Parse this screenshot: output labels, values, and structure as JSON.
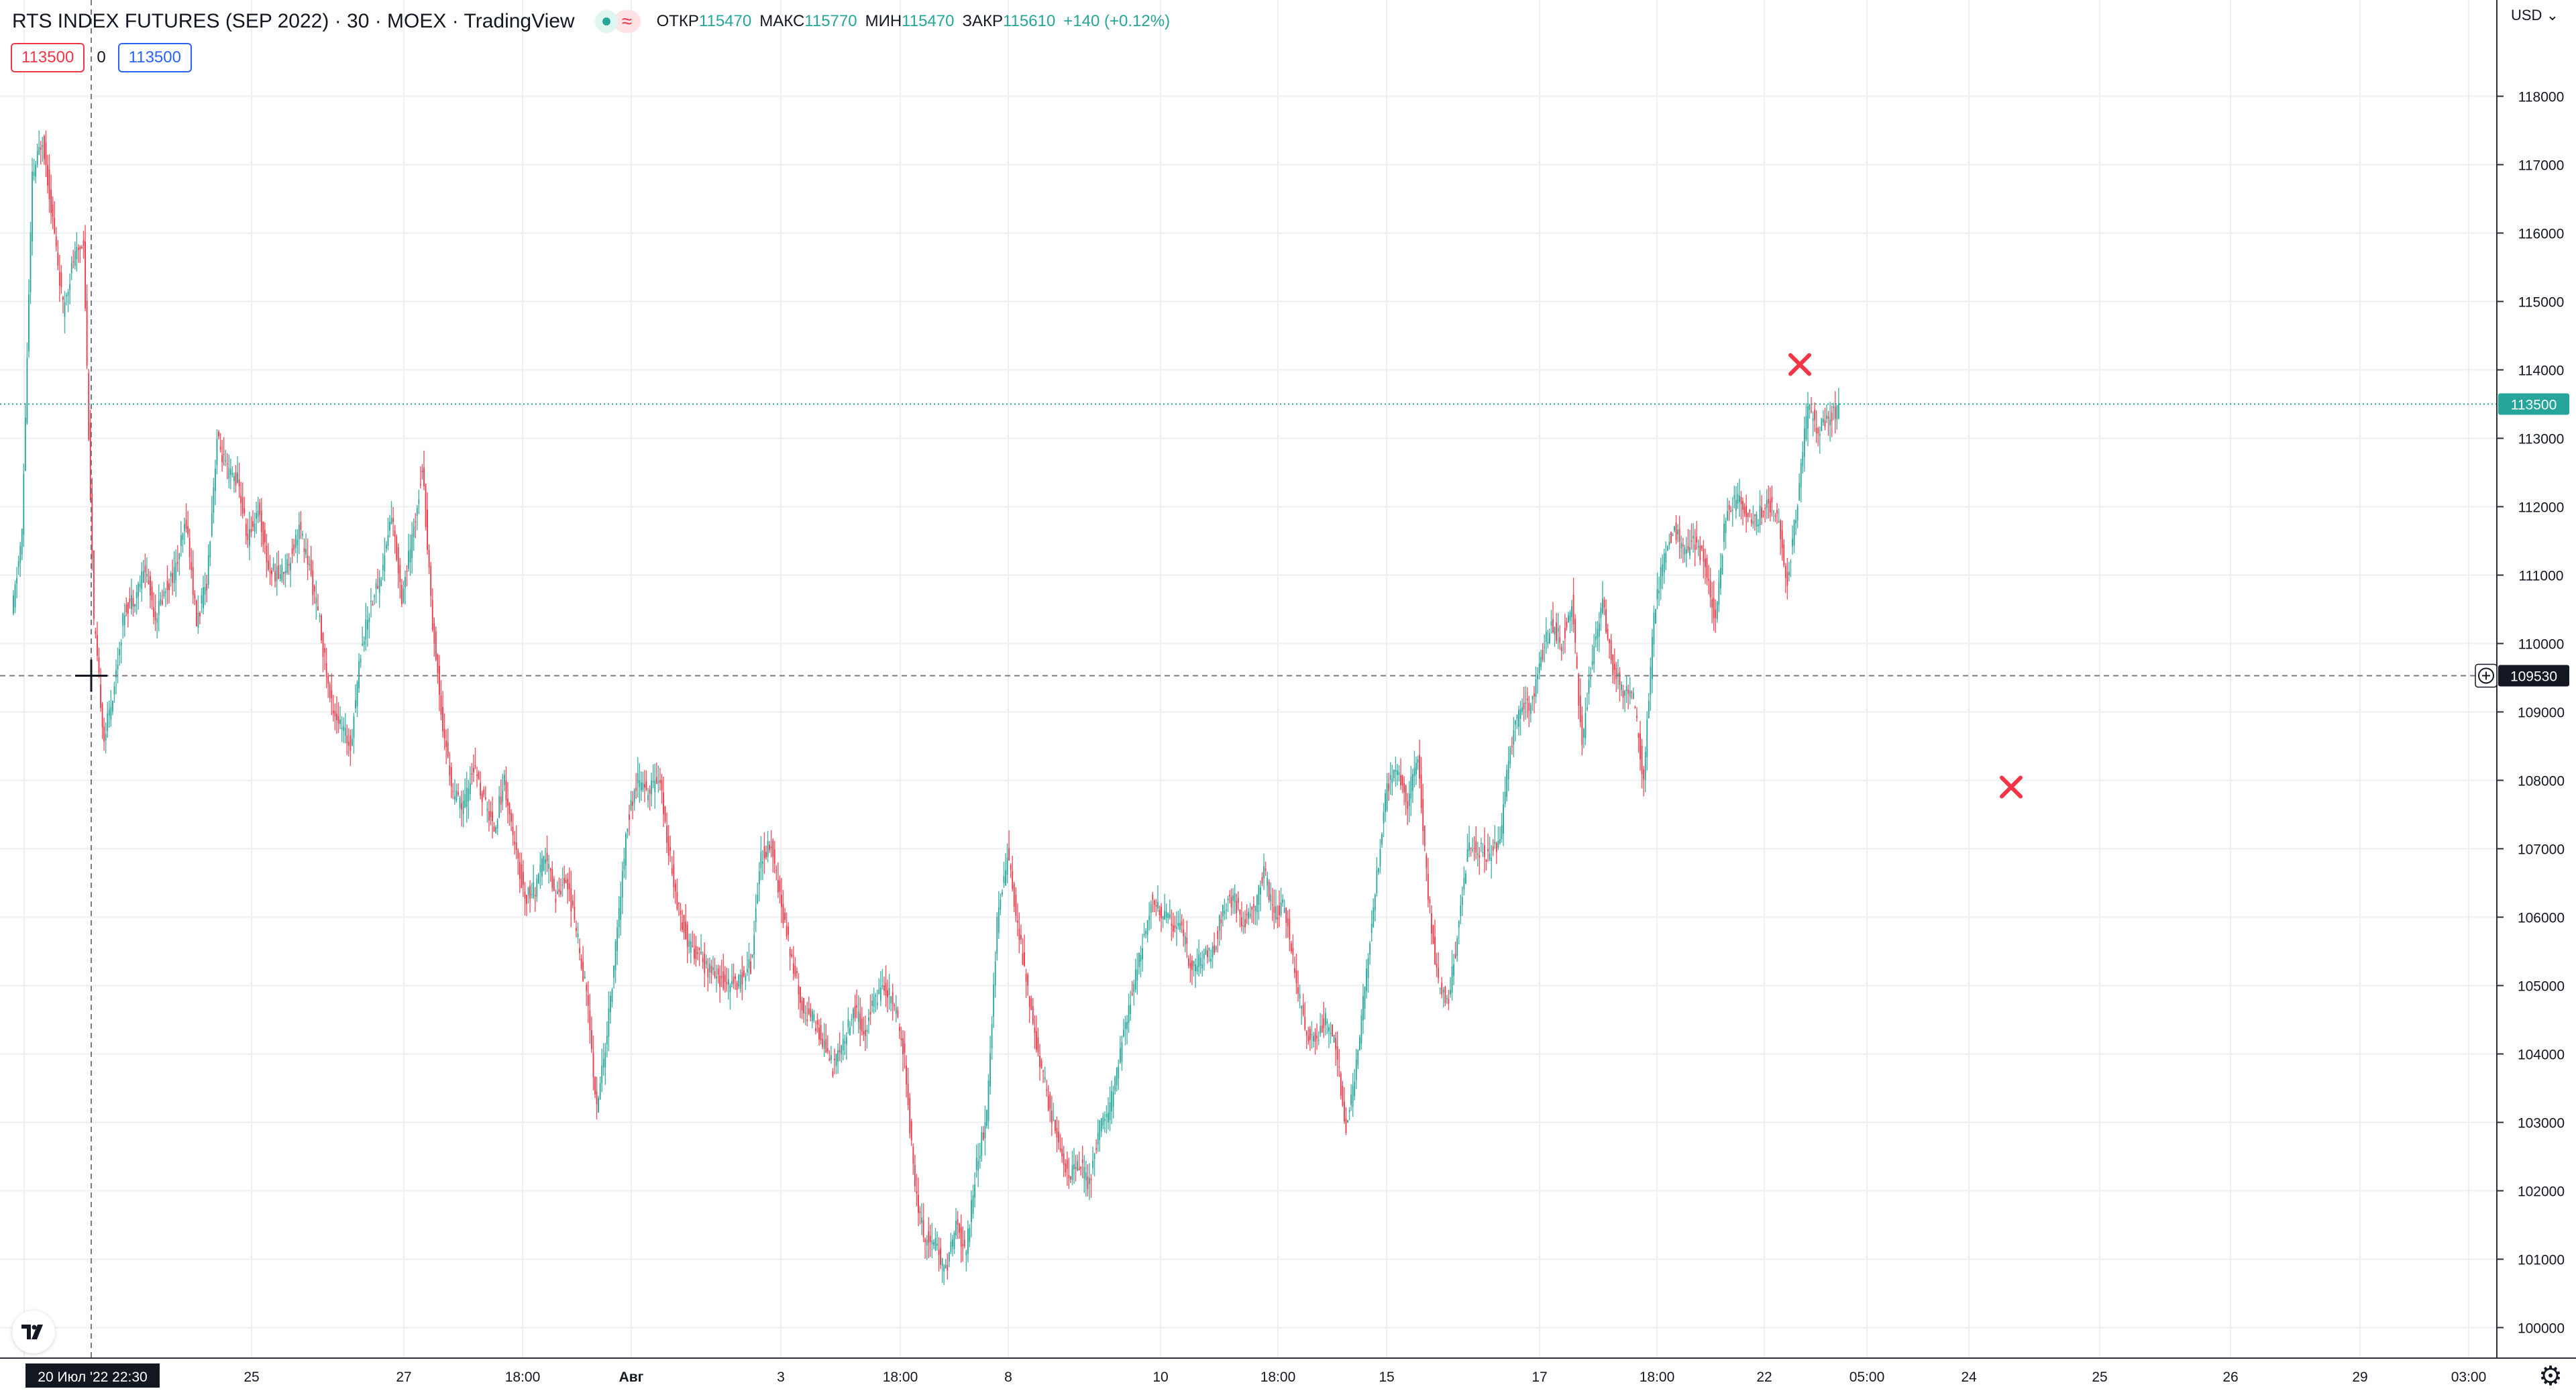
{
  "legend": {
    "symbol": "RTS INDEX FUTURES (SEP 2022) · 30 · MOEX · TradingView",
    "open_label": "ОТКР",
    "open": "115470",
    "high_label": "МАКС",
    "high": "115770",
    "low_label": "МИН",
    "low": "115470",
    "close_label": "ЗАКР",
    "close": "115610",
    "change": "+140 (+0.12%)"
  },
  "position": {
    "sell": "113500",
    "qty": "0",
    "buy": "113500"
  },
  "currency": "USD",
  "icons": {
    "logo": "tradingview-logo-icon",
    "settings": "gear-icon",
    "bid_marker": "x-marker-icon"
  },
  "colors": {
    "up": "#26a69a",
    "down": "#f23645",
    "grid": "#eeeff2",
    "crosshair_label": "#131722"
  },
  "chart_data": {
    "type": "candlestick",
    "title": "RTS INDEX FUTURES (SEP 2022)",
    "interval": "30",
    "exchange": "MOEX",
    "grid": true,
    "y_axis": {
      "position": "right",
      "ticks": [
        118000,
        117000,
        116000,
        115000,
        114000,
        113000,
        112000,
        111000,
        110000,
        109000,
        108000,
        107000,
        106000,
        105000,
        104000,
        103000,
        102000,
        101000,
        100000
      ],
      "range": [
        99700,
        119200
      ]
    },
    "x_axis": {
      "ticks": [
        "20 Июл '22 22:30",
        "25",
        "27",
        "18:00",
        "Авг",
        "3",
        "18:00",
        "8",
        "10",
        "18:00",
        "15",
        "17",
        "18:00",
        "22",
        "05:00",
        "24",
        "25",
        "26",
        "29",
        "03:00"
      ]
    },
    "current_price": 113500,
    "crosshair_price": 109530,
    "markers": [
      {
        "price": 114000
      },
      {
        "price": 108000
      }
    ],
    "price_path": [
      [
        0,
        110400
      ],
      [
        1,
        111600
      ],
      [
        2,
        116800
      ],
      [
        3,
        117400
      ],
      [
        4,
        116200
      ],
      [
        5,
        114900
      ],
      [
        6,
        115600
      ],
      [
        7,
        115900
      ],
      [
        8,
        110300
      ],
      [
        9,
        108600
      ],
      [
        10,
        109400
      ],
      [
        11,
        110500
      ],
      [
        12,
        110700
      ],
      [
        13,
        111100
      ],
      [
        14,
        110400
      ],
      [
        15,
        110800
      ],
      [
        16,
        111100
      ],
      [
        17,
        111800
      ],
      [
        18,
        110300
      ],
      [
        19,
        110900
      ],
      [
        20,
        113000
      ],
      [
        21,
        112500
      ],
      [
        22,
        112400
      ],
      [
        23,
        111500
      ],
      [
        24,
        112000
      ],
      [
        25,
        111100
      ],
      [
        26,
        111000
      ],
      [
        27,
        111200
      ],
      [
        28,
        111700
      ],
      [
        29,
        111100
      ],
      [
        30,
        110300
      ],
      [
        31,
        109200
      ],
      [
        32,
        108800
      ],
      [
        33,
        108500
      ],
      [
        34,
        109900
      ],
      [
        35,
        110600
      ],
      [
        36,
        111000
      ],
      [
        37,
        111900
      ],
      [
        38,
        110700
      ],
      [
        39,
        111500
      ],
      [
        40,
        112600
      ],
      [
        41,
        110300
      ],
      [
        42,
        108800
      ],
      [
        43,
        107800
      ],
      [
        44,
        107600
      ],
      [
        45,
        108200
      ],
      [
        46,
        107700
      ],
      [
        47,
        107300
      ],
      [
        48,
        108000
      ],
      [
        49,
        107000
      ],
      [
        50,
        106300
      ],
      [
        51,
        106400
      ],
      [
        52,
        106900
      ],
      [
        53,
        106300
      ],
      [
        54,
        106600
      ],
      [
        55,
        105800
      ],
      [
        56,
        104900
      ],
      [
        57,
        103200
      ],
      [
        58,
        104300
      ],
      [
        59,
        105800
      ],
      [
        60,
        107400
      ],
      [
        61,
        108000
      ],
      [
        62,
        107800
      ],
      [
        63,
        108100
      ],
      [
        64,
        107000
      ],
      [
        65,
        106100
      ],
      [
        66,
        105600
      ],
      [
        67,
        105400
      ],
      [
        68,
        105200
      ],
      [
        69,
        105100
      ],
      [
        70,
        105000
      ],
      [
        71,
        105100
      ],
      [
        72,
        105300
      ],
      [
        73,
        106900
      ],
      [
        74,
        107100
      ],
      [
        75,
        106100
      ],
      [
        76,
        105400
      ],
      [
        77,
        104700
      ],
      [
        78,
        104500
      ],
      [
        79,
        104200
      ],
      [
        80,
        103800
      ],
      [
        81,
        104100
      ],
      [
        82,
        104700
      ],
      [
        83,
        104300
      ],
      [
        84,
        104800
      ],
      [
        85,
        105000
      ],
      [
        86,
        104700
      ],
      [
        87,
        103900
      ],
      [
        88,
        102000
      ],
      [
        89,
        101300
      ],
      [
        90,
        101200
      ],
      [
        91,
        100800
      ],
      [
        92,
        101500
      ],
      [
        93,
        101100
      ],
      [
        94,
        102400
      ],
      [
        95,
        103100
      ],
      [
        96,
        105900
      ],
      [
        97,
        106900
      ],
      [
        98,
        105900
      ],
      [
        99,
        104900
      ],
      [
        100,
        104000
      ],
      [
        101,
        103300
      ],
      [
        102,
        102700
      ],
      [
        103,
        102200
      ],
      [
        104,
        102400
      ],
      [
        105,
        102100
      ],
      [
        106,
        102900
      ],
      [
        107,
        103200
      ],
      [
        108,
        104000
      ],
      [
        109,
        104800
      ],
      [
        110,
        105500
      ],
      [
        111,
        106200
      ],
      [
        112,
        106100
      ],
      [
        113,
        105900
      ],
      [
        114,
        105800
      ],
      [
        115,
        105200
      ],
      [
        116,
        105400
      ],
      [
        117,
        105500
      ],
      [
        118,
        106100
      ],
      [
        119,
        106300
      ],
      [
        120,
        105900
      ],
      [
        121,
        106100
      ],
      [
        122,
        106700
      ],
      [
        123,
        106000
      ],
      [
        124,
        106200
      ],
      [
        125,
        105200
      ],
      [
        126,
        104300
      ],
      [
        127,
        104200
      ],
      [
        128,
        104500
      ],
      [
        129,
        104100
      ],
      [
        130,
        102900
      ],
      [
        131,
        103800
      ],
      [
        132,
        105200
      ],
      [
        133,
        106600
      ],
      [
        134,
        107900
      ],
      [
        135,
        108100
      ],
      [
        136,
        107700
      ],
      [
        137,
        108400
      ],
      [
        138,
        106300
      ],
      [
        139,
        105000
      ],
      [
        140,
        104800
      ],
      [
        141,
        105900
      ],
      [
        142,
        107100
      ],
      [
        143,
        107000
      ],
      [
        144,
        106900
      ],
      [
        145,
        107100
      ],
      [
        146,
        108500
      ],
      [
        147,
        109100
      ],
      [
        148,
        109100
      ],
      [
        149,
        109800
      ],
      [
        150,
        110300
      ],
      [
        151,
        110000
      ],
      [
        152,
        110600
      ],
      [
        153,
        108500
      ],
      [
        154,
        109800
      ],
      [
        155,
        110600
      ],
      [
        156,
        109600
      ],
      [
        157,
        109300
      ],
      [
        158,
        109200
      ],
      [
        159,
        108000
      ],
      [
        160,
        110400
      ],
      [
        161,
        111300
      ],
      [
        162,
        111700
      ],
      [
        163,
        111300
      ],
      [
        164,
        111500
      ],
      [
        165,
        111200
      ],
      [
        166,
        110300
      ],
      [
        167,
        111900
      ],
      [
        168,
        112100
      ],
      [
        169,
        111900
      ],
      [
        170,
        111800
      ],
      [
        171,
        112100
      ],
      [
        172,
        111900
      ],
      [
        173,
        110900
      ],
      [
        174,
        112100
      ],
      [
        175,
        113500
      ],
      [
        176,
        113100
      ],
      [
        177,
        113300
      ],
      [
        178,
        113400
      ]
    ],
    "projected_path": [
      [
        178,
        113400
      ],
      [
        179,
        113500
      ]
    ]
  }
}
